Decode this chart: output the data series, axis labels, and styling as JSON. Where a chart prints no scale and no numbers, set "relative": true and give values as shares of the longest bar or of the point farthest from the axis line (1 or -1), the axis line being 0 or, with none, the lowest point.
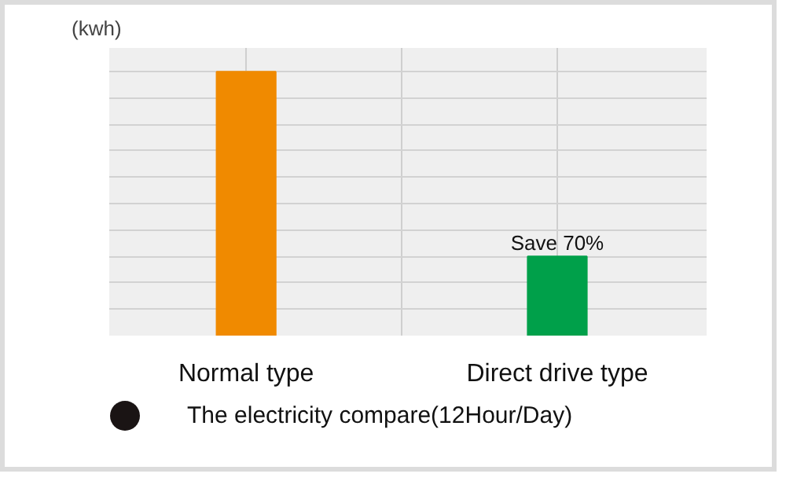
{
  "chart_data": {
    "type": "bar",
    "relative": true,
    "ylabel": "(kwh)",
    "categories": [
      "Normal type",
      "Direct drive type"
    ],
    "values": [
      1,
      0.3
    ],
    "colors": [
      "#f08a00",
      "#00a04a"
    ],
    "annotations": [
      {
        "text": "Save 70%",
        "x": "Direct drive type",
        "y": 0.3
      },
      "The electricity compare(12Hour/Day)"
    ],
    "grid": true
  }
}
